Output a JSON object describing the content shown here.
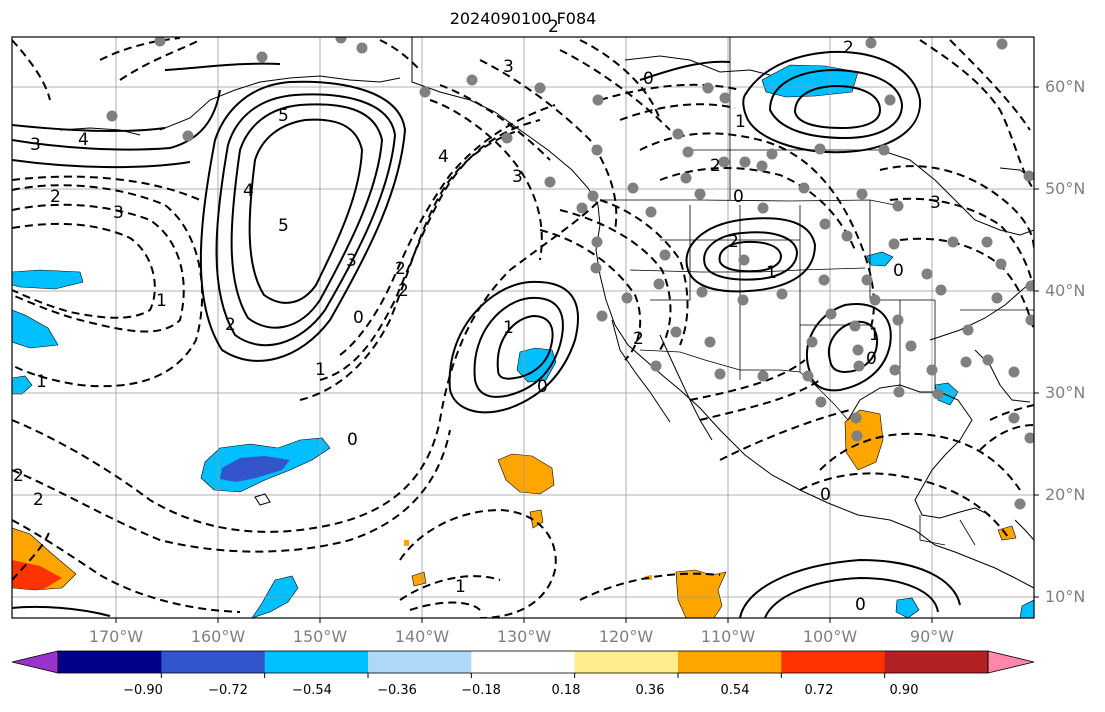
{
  "title": "2024090100 F084",
  "lat_labels": [
    "60°N",
    "50°N",
    "40°N",
    "30°N",
    "20°N",
    "10°N"
  ],
  "lon_labels": [
    "170°W",
    "160°W",
    "150°W",
    "140°W",
    "130°W",
    "120°W",
    "110°W",
    "100°W",
    "90°W"
  ],
  "colorbar": {
    "colors": [
      "#9933cc",
      "#00008b",
      "#3355cc",
      "#00bfff",
      "#add8f7",
      "#ffffff",
      "#ffec8b",
      "#ffa500",
      "#ff3300",
      "#b22222",
      "#ff88aa"
    ],
    "tick_labels": [
      "−0.90",
      "−0.72",
      "−0.54",
      "−0.36",
      "−0.18",
      "0.18",
      "0.36",
      "0.54",
      "0.72",
      "0.90"
    ]
  },
  "contour_labels": [
    "5",
    "4",
    "3",
    "2",
    "1",
    "0",
    "2",
    "3",
    "4",
    "5",
    "3",
    "2",
    "1",
    "0",
    "1",
    "0",
    "2",
    "3",
    "2",
    "4",
    "3",
    "0",
    "2",
    "1",
    "0",
    "1",
    "0",
    "1",
    "2",
    "2",
    "0",
    "1",
    "2",
    "0",
    "2",
    "1",
    "0",
    "2",
    "3"
  ],
  "shading": {
    "negative_color": "#00bfff",
    "positive_color": "#ffa500",
    "strong_negative_color": "#3355cc"
  }
}
